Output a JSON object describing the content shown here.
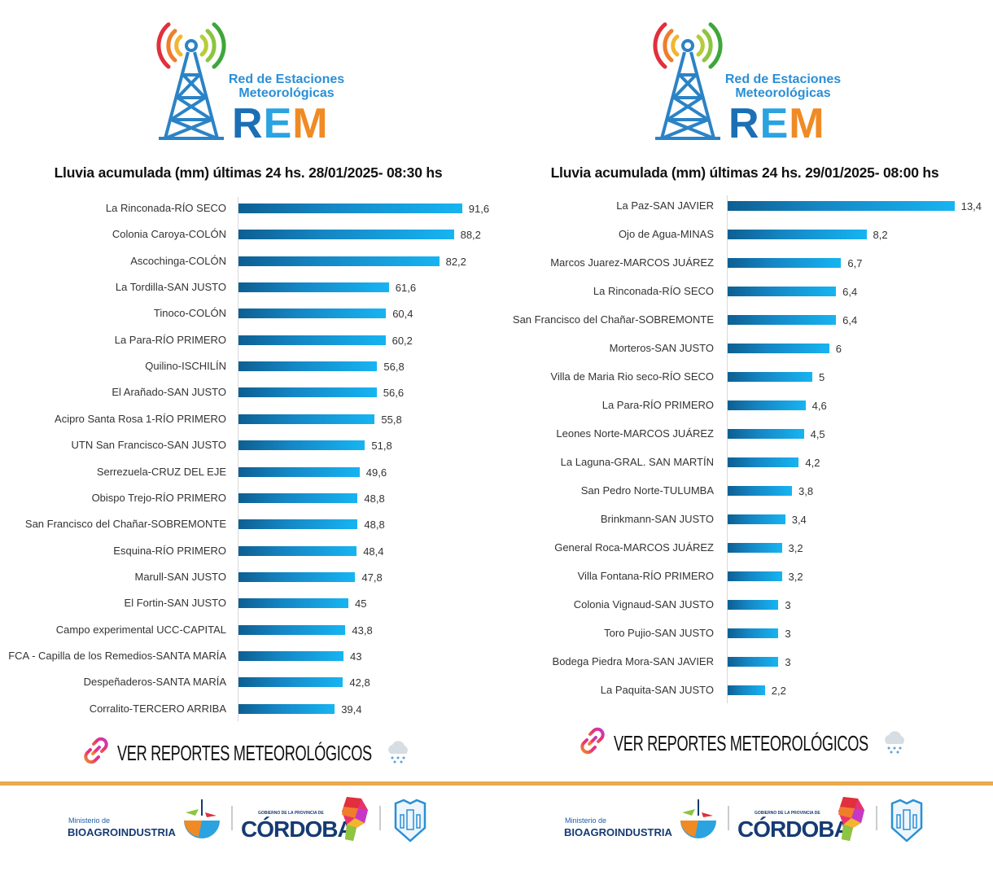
{
  "logo": {
    "line1": "Red de Estaciones",
    "line2": "Meteorológicas",
    "acronym": [
      "R",
      "E",
      "M"
    ]
  },
  "link_label": "VER REPORTES METEOROLÓGICOS",
  "footer": {
    "ministry_small": "Ministerio de",
    "ministry_big": "BIOAGROINDUSTRIA",
    "gov_small": "GOBIERNO DE LA PROVINCIA DE",
    "gov_big": "CÓRDOBA"
  },
  "colors": {
    "bar_dark": "#0d5f92",
    "bar_light": "#17b4f2",
    "divider": "#eca84a"
  },
  "chart_data": [
    {
      "type": "bar",
      "orientation": "horizontal",
      "title": "Lluvia acumulada (mm) últimas 24 hs. 28/01/2025- 08:30 hs",
      "categories": [
        "La Rinconada-RÍO SECO",
        "Colonia Caroya-COLÓN",
        "Ascochinga-COLÓN",
        "La Tordilla-SAN JUSTO",
        "Tinoco-COLÓN",
        "La Para-RÍO PRIMERO",
        "Quilino-ISCHILÍN",
        "El Arañado-SAN JUSTO",
        "Acipro Santa Rosa 1-RÍO PRIMERO",
        "UTN San Francisco-SAN JUSTO",
        "Serrezuela-CRUZ DEL EJE",
        "Obispo Trejo-RÍO PRIMERO",
        "San Francisco del Chañar-SOBREMONTE",
        "Esquina-RÍO PRIMERO",
        "Marull-SAN JUSTO",
        "El Fortin-SAN JUSTO",
        "Campo experimental UCC-CAPITAL",
        "FCA - Capilla de los Remedios-SANTA MARÍA",
        "Despeñaderos-SANTA MARÍA",
        "Corralito-TERCERO ARRIBA"
      ],
      "values": [
        91.6,
        88.2,
        82.2,
        61.6,
        60.4,
        60.2,
        56.8,
        56.6,
        55.8,
        51.8,
        49.6,
        48.8,
        48.8,
        48.4,
        47.8,
        45,
        43.8,
        43,
        42.8,
        39.4
      ],
      "value_labels": [
        "91,6",
        "88,2",
        "82,2",
        "61,6",
        "60,4",
        "60,2",
        "56,8",
        "56,6",
        "55,8",
        "51,8",
        "49,6",
        "48,8",
        "48,8",
        "48,4",
        "47,8",
        "45",
        "43,8",
        "43",
        "42,8",
        "39,4"
      ],
      "xlim": [
        0,
        100
      ],
      "grid": false
    },
    {
      "type": "bar",
      "orientation": "horizontal",
      "title": "Lluvia acumulada (mm) últimas 24 hs. 29/01/2025- 08:00 hs",
      "categories": [
        "La Paz-SAN JAVIER",
        "Ojo de Agua-MINAS",
        "Marcos Juarez-MARCOS JUÁREZ",
        "La Rinconada-RÍO SECO",
        "San Francisco del Chañar-SOBREMONTE",
        "Morteros-SAN JUSTO",
        "Villa de Maria Rio seco-RÍO SECO",
        "La Para-RÍO PRIMERO",
        "Leones Norte-MARCOS JUÁREZ",
        "La Laguna-GRAL. SAN MARTÍN",
        "San Pedro Norte-TULUMBA",
        "Brinkmann-SAN JUSTO",
        "General Roca-MARCOS JUÁREZ",
        "Villa Fontana-RÍO PRIMERO",
        "Colonia Vignaud-SAN JUSTO",
        "Toro Pujio-SAN JUSTO",
        "Bodega Piedra Mora-SAN JAVIER",
        "La Paquita-SAN JUSTO"
      ],
      "values": [
        13.4,
        8.2,
        6.7,
        6.4,
        6.4,
        6,
        5,
        4.6,
        4.5,
        4.2,
        3.8,
        3.4,
        3.2,
        3.2,
        3,
        3,
        3,
        2.2
      ],
      "value_labels": [
        "13,4",
        "8,2",
        "6,7",
        "6,4",
        "6,4",
        "6",
        "5",
        "4,6",
        "4,5",
        "4,2",
        "3,8",
        "3,4",
        "3,2",
        "3,2",
        "3",
        "3",
        "3",
        "2,2"
      ],
      "xlim": [
        0,
        14.5
      ],
      "grid": false
    }
  ]
}
